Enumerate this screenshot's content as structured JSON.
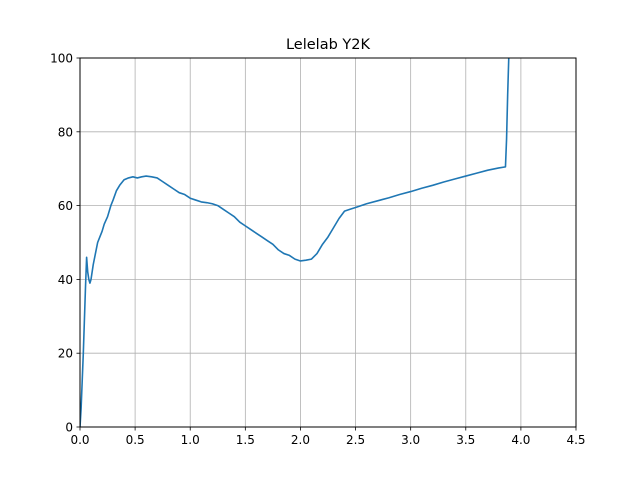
{
  "chart_data": {
    "type": "line",
    "title": "Lelelab Y2K",
    "xlabel": "",
    "ylabel": "",
    "xlim": [
      0,
      4.5
    ],
    "ylim": [
      0,
      100
    ],
    "xticks": [
      0.0,
      0.5,
      1.0,
      1.5,
      2.0,
      2.5,
      3.0,
      3.5,
      4.0,
      4.5
    ],
    "yticks": [
      0,
      20,
      40,
      60,
      80,
      100
    ],
    "xtick_labels": [
      "0.0",
      "0.5",
      "1.0",
      "1.5",
      "2.0",
      "2.5",
      "3.0",
      "3.5",
      "4.0",
      "4.5"
    ],
    "ytick_labels": [
      "0",
      "20",
      "40",
      "60",
      "80",
      "100"
    ],
    "grid": true,
    "line_color": "#1f77b4",
    "grid_color": "#b0b0b0",
    "series": [
      {
        "x": [
          0.0,
          0.01,
          0.03,
          0.05,
          0.06,
          0.07,
          0.08,
          0.09,
          0.1,
          0.12,
          0.14,
          0.16,
          0.18,
          0.2,
          0.22,
          0.25,
          0.28,
          0.3,
          0.33,
          0.36,
          0.4,
          0.44,
          0.48,
          0.52,
          0.56,
          0.6,
          0.65,
          0.7,
          0.75,
          0.8,
          0.85,
          0.9,
          0.95,
          1.0,
          1.05,
          1.1,
          1.15,
          1.2,
          1.25,
          1.3,
          1.35,
          1.4,
          1.45,
          1.5,
          1.55,
          1.6,
          1.65,
          1.7,
          1.75,
          1.8,
          1.85,
          1.9,
          1.95,
          2.0,
          2.05,
          2.1,
          2.15,
          2.2,
          2.25,
          2.3,
          2.35,
          2.4,
          2.45,
          2.5,
          2.55,
          2.6,
          2.7,
          2.8,
          2.9,
          3.0,
          3.1,
          3.2,
          3.3,
          3.4,
          3.5,
          3.6,
          3.7,
          3.8,
          3.86,
          3.87,
          3.88,
          3.89,
          3.9
        ],
        "y": [
          0,
          5,
          20,
          38,
          46,
          42,
          40,
          39,
          40,
          44,
          47,
          50,
          51.5,
          53,
          55,
          57,
          60,
          61.5,
          64,
          65.5,
          67,
          67.5,
          67.8,
          67.5,
          67.8,
          68,
          67.8,
          67.5,
          66.5,
          65.5,
          64.5,
          63.5,
          63,
          62,
          61.5,
          61,
          60.8,
          60.5,
          60,
          59,
          58,
          57,
          55.5,
          54.5,
          53.5,
          52.5,
          51.5,
          50.5,
          49.5,
          48,
          47,
          46.5,
          45.5,
          45,
          45.2,
          45.5,
          47,
          49.5,
          51.5,
          54,
          56.5,
          58.5,
          59,
          59.5,
          60,
          60.5,
          61.3,
          62.1,
          63,
          63.8,
          64.7,
          65.5,
          66.4,
          67.2,
          68,
          68.8,
          69.6,
          70.2,
          70.5,
          78,
          90,
          100,
          102
        ]
      }
    ]
  }
}
